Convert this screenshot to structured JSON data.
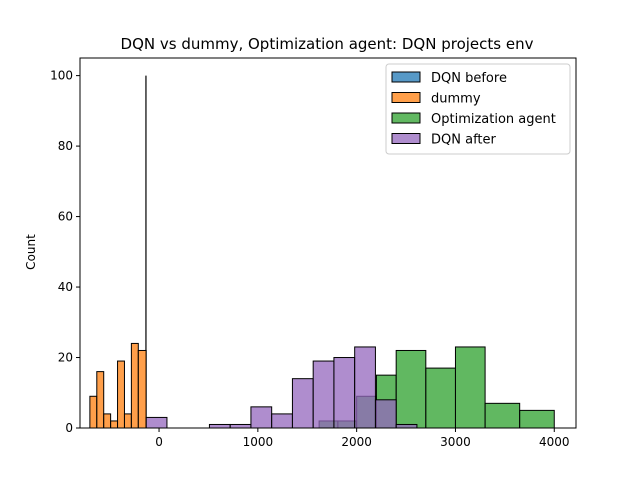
{
  "chart_data": {
    "type": "histogram",
    "title": "DQN vs dummy, Optimization agent: DQN projects env",
    "xlabel": "",
    "ylabel": "Count",
    "xlim": [
      -800,
      4220
    ],
    "ylim": [
      0,
      105
    ],
    "xticks": [
      0,
      1000,
      2000,
      3000,
      4000
    ],
    "yticks": [
      0,
      20,
      40,
      60,
      80,
      100
    ],
    "legend_position": "top-right",
    "series": [
      {
        "name": "DQN before",
        "color": "#1f77b4",
        "style": "spike",
        "bins": [
          {
            "x0": -140,
            "x1": -125,
            "count": 100
          }
        ]
      },
      {
        "name": "dummy",
        "color": "#ff7f0e",
        "bins": [
          {
            "x0": -700,
            "x1": -630,
            "count": 9
          },
          {
            "x0": -630,
            "x1": -560,
            "count": 16
          },
          {
            "x0": -560,
            "x1": -490,
            "count": 4
          },
          {
            "x0": -490,
            "x1": -420,
            "count": 2
          },
          {
            "x0": -420,
            "x1": -350,
            "count": 19
          },
          {
            "x0": -350,
            "x1": -280,
            "count": 4
          },
          {
            "x0": -280,
            "x1": -210,
            "count": 24
          },
          {
            "x0": -210,
            "x1": -130,
            "count": 22
          }
        ]
      },
      {
        "name": "Optimization agent",
        "color": "#2ca02c",
        "bins": [
          {
            "x0": 1620,
            "x1": 1810,
            "count": 2
          },
          {
            "x0": 1810,
            "x1": 2000,
            "count": 2
          },
          {
            "x0": 2000,
            "x1": 2200,
            "count": 9
          },
          {
            "x0": 2200,
            "x1": 2400,
            "count": 15
          },
          {
            "x0": 2400,
            "x1": 2700,
            "count": 22
          },
          {
            "x0": 2700,
            "x1": 3000,
            "count": 17
          },
          {
            "x0": 3000,
            "x1": 3300,
            "count": 23
          },
          {
            "x0": 3300,
            "x1": 3650,
            "count": 7
          },
          {
            "x0": 3650,
            "x1": 4000,
            "count": 5
          }
        ]
      },
      {
        "name": "DQN after",
        "color": "#9467bd",
        "bins": [
          {
            "x0": -130,
            "x1": 80,
            "count": 3
          },
          {
            "x0": 510,
            "x1": 720,
            "count": 1
          },
          {
            "x0": 720,
            "x1": 930,
            "count": 1
          },
          {
            "x0": 930,
            "x1": 1140,
            "count": 6
          },
          {
            "x0": 1140,
            "x1": 1350,
            "count": 4
          },
          {
            "x0": 1350,
            "x1": 1560,
            "count": 14
          },
          {
            "x0": 1560,
            "x1": 1770,
            "count": 19
          },
          {
            "x0": 1770,
            "x1": 1980,
            "count": 20
          },
          {
            "x0": 1980,
            "x1": 2190,
            "count": 23
          },
          {
            "x0": 2190,
            "x1": 2400,
            "count": 8
          },
          {
            "x0": 2400,
            "x1": 2610,
            "count": 1
          }
        ]
      }
    ]
  }
}
